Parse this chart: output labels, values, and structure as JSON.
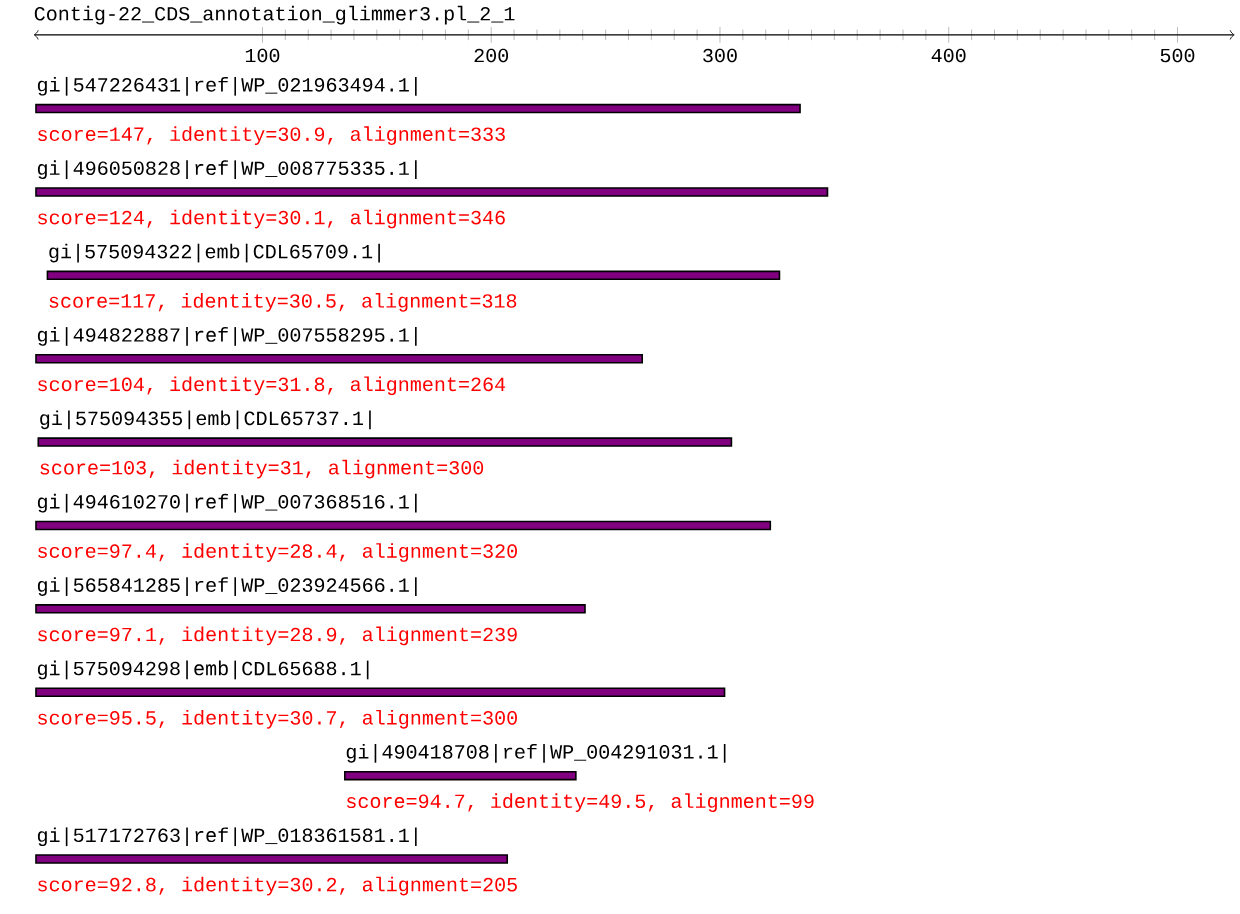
{
  "chart_data": {
    "type": "bar",
    "orientation": "horizontal",
    "title": "Contig-22_CDS_annotation_glimmer3.pl_2_1",
    "categories": [
      "gi|547226431|ref|WP_021963494.1|",
      "gi|496050828|ref|WP_008775335.1|",
      "gi|575094322|emb|CDL65709.1|",
      "gi|494822887|ref|WP_007558295.1|",
      "gi|575094355|emb|CDL65737.1|",
      "gi|494610270|ref|WP_007368516.1|",
      "gi|565841285|ref|WP_023924566.1|",
      "gi|575094298|emb|CDL65688.1|",
      "gi|490418708|ref|WP_004291031.1|",
      "gi|517172763|ref|WP_018361581.1|"
    ],
    "base": [
      1,
      1,
      6,
      1,
      2,
      1,
      1,
      1,
      136,
      1
    ],
    "values": [
      334,
      346,
      320,
      265,
      303,
      321,
      240,
      301,
      101,
      206
    ],
    "color": "#800080",
    "annotations": [
      "score=147, identity=30.9, alignment=333",
      "score=124, identity=30.1, alignment=346",
      "score=117, identity=30.5, alignment=318",
      "score=104, identity=31.8, alignment=264",
      "score=103, identity=31, alignment=300",
      "score=97.4, identity=28.4, alignment=320",
      "score=97.1, identity=28.9, alignment=239",
      "score=95.5, identity=30.7, alignment=300",
      "score=94.7, identity=49.5, alignment=99",
      "score=92.8, identity=30.2, alignment=205"
    ],
    "xlim": [
      0,
      525
    ],
    "xticks": [
      100,
      200,
      300,
      400,
      500
    ]
  }
}
